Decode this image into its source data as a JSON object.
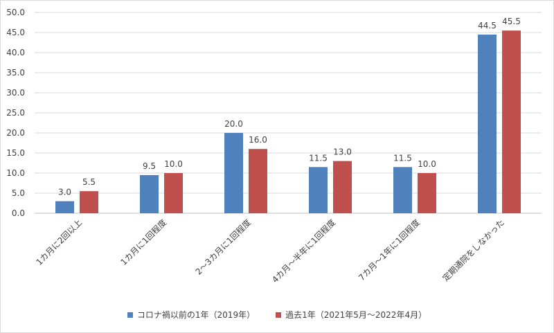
{
  "chart_data": {
    "type": "bar",
    "categories": [
      "1カ月に2回以上",
      "1カ月に1回程度",
      "2～3カ月に1回程度",
      "4カ月～半年に1回程度",
      "7カ月～1年に1回程度",
      "定期通院をしなかった"
    ],
    "series": [
      {
        "name": "コロナ禍以前の1年（2019年）",
        "values": [
          3.0,
          9.5,
          20.0,
          11.5,
          11.5,
          44.5
        ],
        "color": "#4f81bd"
      },
      {
        "name": "過去1年（2021年5月～2022年4月）",
        "values": [
          5.5,
          10.0,
          16.0,
          13.0,
          10.0,
          45.5
        ],
        "color": "#c0504d"
      }
    ],
    "yticks": [
      "0.0",
      "5.0",
      "10.0",
      "15.0",
      "20.0",
      "25.0",
      "30.0",
      "35.0",
      "40.0",
      "45.0",
      "50.0"
    ],
    "ylim": [
      0,
      50
    ],
    "grid": true,
    "legend_position": "bottom"
  }
}
